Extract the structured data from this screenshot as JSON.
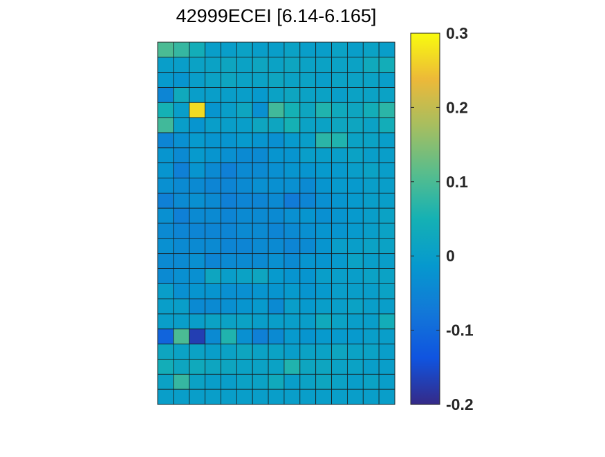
{
  "chart_data": {
    "type": "heatmap",
    "title": "42999ECEI [6.14-6.165]",
    "rows": 24,
    "cols": 15,
    "colormap": "parula",
    "clim": [
      -0.2,
      0.3
    ],
    "colorbar": {
      "ticks": [
        -0.2,
        -0.1,
        0,
        0.1,
        0.2,
        0.3
      ],
      "tick_labels": [
        "-0.2",
        "-0.1",
        "0",
        "0.1",
        "0.2",
        "0.3"
      ]
    },
    "values": [
      [
        0.1,
        0.08,
        0.04,
        0.0,
        0.0,
        0.01,
        0.0,
        0.0,
        0.01,
        0.0,
        0.0,
        0.01,
        0.0,
        0.01,
        0.0
      ],
      [
        0.0,
        0.0,
        0.01,
        0.01,
        0.02,
        0.01,
        0.02,
        0.01,
        0.02,
        0.01,
        0.01,
        0.01,
        0.01,
        0.03,
        0.04
      ],
      [
        -0.01,
        -0.02,
        0.0,
        0.01,
        0.02,
        0.01,
        0.01,
        0.02,
        0.01,
        0.01,
        0.0,
        0.01,
        0.01,
        0.01,
        0.0
      ],
      [
        -0.05,
        0.03,
        0.0,
        0.0,
        0.0,
        0.0,
        -0.01,
        0.01,
        0.02,
        0.01,
        0.01,
        0.0,
        0.01,
        0.01,
        0.01
      ],
      [
        0.05,
        0.0,
        0.27,
        -0.02,
        0.0,
        0.02,
        -0.03,
        0.09,
        0.05,
        0.02,
        0.06,
        0.03,
        0.02,
        0.04,
        0.07
      ],
      [
        0.09,
        0.0,
        -0.02,
        0.0,
        0.0,
        0.0,
        0.02,
        0.02,
        0.05,
        0.01,
        0.01,
        0.02,
        0.02,
        0.01,
        0.04
      ],
      [
        -0.05,
        -0.03,
        -0.01,
        -0.02,
        -0.02,
        -0.01,
        -0.02,
        -0.03,
        -0.01,
        0.0,
        0.07,
        0.06,
        0.01,
        0.01,
        0.0
      ],
      [
        -0.02,
        -0.04,
        -0.01,
        -0.02,
        -0.03,
        -0.04,
        -0.04,
        -0.02,
        -0.02,
        0.0,
        0.0,
        0.0,
        0.01,
        0.0,
        0.0
      ],
      [
        -0.02,
        -0.06,
        -0.02,
        -0.04,
        -0.06,
        -0.04,
        -0.04,
        -0.03,
        -0.02,
        -0.02,
        -0.01,
        -0.01,
        0.0,
        0.01,
        0.0
      ],
      [
        -0.03,
        -0.04,
        -0.04,
        -0.05,
        -0.05,
        -0.04,
        -0.03,
        -0.03,
        -0.03,
        -0.04,
        -0.02,
        -0.01,
        -0.01,
        0.0,
        0.0
      ],
      [
        -0.06,
        -0.04,
        -0.03,
        -0.04,
        -0.06,
        -0.05,
        -0.05,
        -0.04,
        -0.07,
        -0.05,
        -0.03,
        -0.02,
        -0.01,
        0.0,
        0.0
      ],
      [
        -0.03,
        -0.06,
        -0.04,
        -0.04,
        -0.05,
        -0.04,
        -0.04,
        -0.04,
        -0.03,
        -0.02,
        -0.03,
        -0.02,
        -0.01,
        0.0,
        0.01
      ],
      [
        -0.04,
        -0.05,
        -0.05,
        -0.05,
        -0.05,
        -0.04,
        -0.04,
        -0.05,
        -0.04,
        -0.03,
        -0.02,
        -0.02,
        -0.01,
        0.0,
        0.01
      ],
      [
        -0.03,
        -0.04,
        -0.04,
        -0.04,
        -0.05,
        -0.05,
        -0.04,
        -0.04,
        -0.05,
        -0.04,
        -0.02,
        0.0,
        0.0,
        0.01,
        0.01
      ],
      [
        -0.04,
        -0.04,
        -0.03,
        -0.05,
        -0.04,
        -0.04,
        -0.04,
        -0.03,
        -0.04,
        -0.02,
        -0.02,
        -0.01,
        0.01,
        0.0,
        0.0
      ],
      [
        -0.04,
        -0.03,
        -0.03,
        0.02,
        0.0,
        0.01,
        0.02,
        -0.01,
        -0.02,
        -0.02,
        0.0,
        0.0,
        0.0,
        0.01,
        0.01
      ],
      [
        0.0,
        -0.03,
        -0.02,
        -0.02,
        -0.03,
        -0.03,
        -0.02,
        -0.02,
        -0.01,
        -0.02,
        -0.01,
        0.0,
        0.0,
        0.0,
        0.01
      ],
      [
        0.0,
        0.0,
        -0.04,
        -0.04,
        -0.03,
        -0.02,
        -0.01,
        -0.04,
        0.0,
        -0.01,
        0.0,
        0.0,
        0.01,
        0.0,
        0.0
      ],
      [
        0.0,
        0.0,
        0.0,
        0.01,
        0.01,
        0.01,
        0.0,
        0.0,
        0.0,
        0.0,
        0.03,
        0.01,
        0.0,
        0.0,
        0.04
      ],
      [
        -0.11,
        0.1,
        -0.17,
        -0.04,
        0.06,
        -0.03,
        -0.06,
        -0.04,
        -0.01,
        -0.02,
        -0.01,
        -0.01,
        -0.01,
        0.0,
        0.0
      ],
      [
        0.02,
        0.01,
        0.01,
        0.0,
        0.01,
        0.02,
        0.01,
        0.01,
        0.0,
        0.01,
        0.01,
        0.02,
        0.01,
        0.01,
        0.0
      ],
      [
        0.04,
        0.02,
        0.03,
        0.02,
        0.02,
        0.01,
        0.01,
        0.01,
        0.06,
        0.02,
        0.02,
        0.01,
        0.01,
        0.0,
        0.0
      ],
      [
        0.01,
        0.08,
        0.01,
        0.0,
        0.0,
        0.01,
        0.01,
        0.03,
        0.0,
        0.01,
        0.02,
        0.01,
        0.0,
        0.01,
        0.0
      ],
      [
        0.0,
        0.0,
        0.0,
        0.0,
        0.0,
        0.0,
        0.0,
        0.0,
        0.0,
        0.0,
        0.0,
        0.0,
        0.0,
        0.0,
        0.0
      ]
    ]
  }
}
